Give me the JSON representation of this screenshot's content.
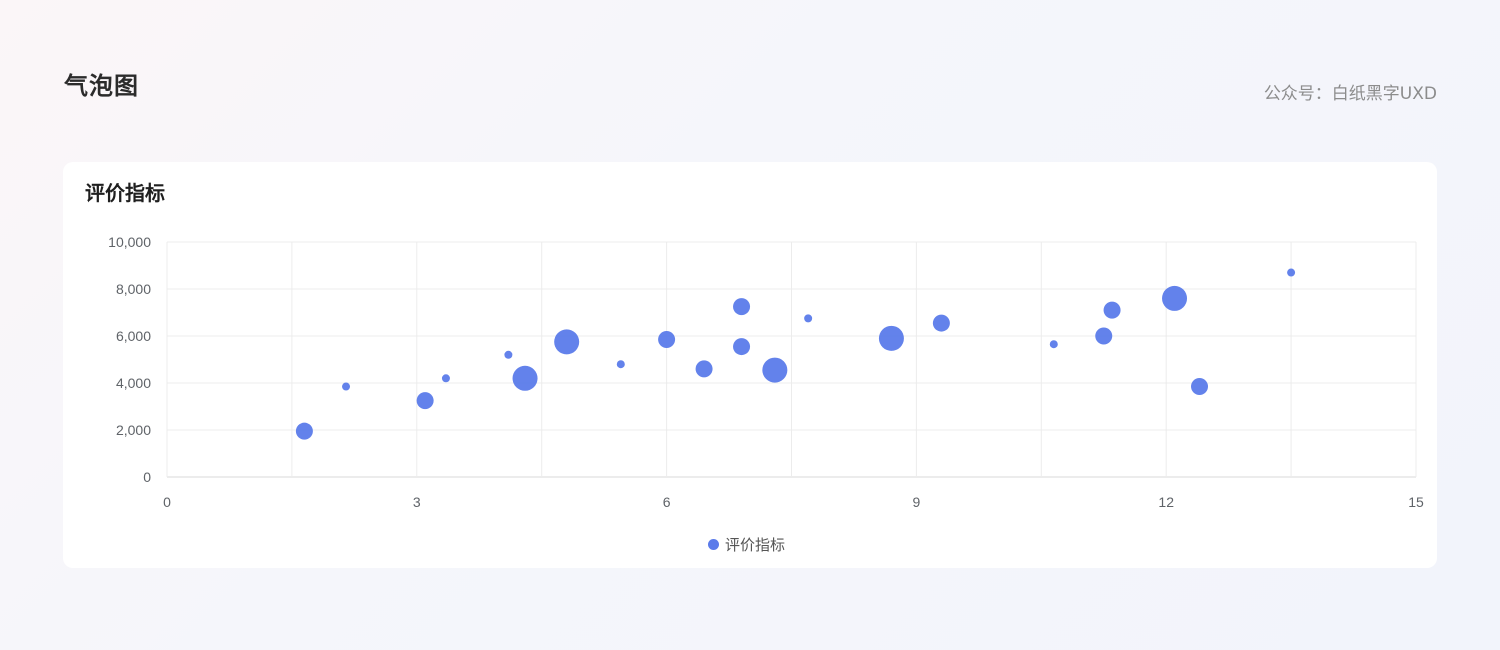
{
  "page": {
    "title": "气泡图",
    "attribution": "公众号：白纸黑字UXD"
  },
  "card": {
    "title": "评价指标"
  },
  "colors": {
    "bubble": "#5b7bea",
    "grid": "#ececec",
    "axis": "#d9d9d9"
  },
  "chart_data": {
    "type": "scatter",
    "title": "评价指标",
    "xlabel": "",
    "ylabel": "",
    "xlim": [
      0,
      15
    ],
    "ylim": [
      0,
      10000
    ],
    "x_ticks": [
      "0",
      "3",
      "6",
      "9",
      "12",
      "15"
    ],
    "y_ticks": [
      "0",
      "2,000",
      "4,000",
      "6,000",
      "8,000",
      "10,000"
    ],
    "grid": true,
    "legend_position": "bottom-center",
    "series": [
      {
        "name": "评价指标",
        "points": [
          {
            "x": 1.65,
            "y": 1950,
            "size": 3
          },
          {
            "x": 2.15,
            "y": 3850,
            "size": 1
          },
          {
            "x": 3.1,
            "y": 3250,
            "size": 3
          },
          {
            "x": 3.35,
            "y": 4200,
            "size": 1
          },
          {
            "x": 4.1,
            "y": 5200,
            "size": 1
          },
          {
            "x": 4.3,
            "y": 4200,
            "size": 6
          },
          {
            "x": 4.8,
            "y": 5750,
            "size": 6
          },
          {
            "x": 5.45,
            "y": 4800,
            "size": 1
          },
          {
            "x": 6.0,
            "y": 5850,
            "size": 3
          },
          {
            "x": 6.45,
            "y": 4600,
            "size": 3
          },
          {
            "x": 6.9,
            "y": 7250,
            "size": 3
          },
          {
            "x": 6.9,
            "y": 5550,
            "size": 3
          },
          {
            "x": 7.3,
            "y": 4550,
            "size": 6
          },
          {
            "x": 7.7,
            "y": 6750,
            "size": 1
          },
          {
            "x": 8.7,
            "y": 5900,
            "size": 6
          },
          {
            "x": 9.3,
            "y": 6550,
            "size": 3
          },
          {
            "x": 10.65,
            "y": 5650,
            "size": 1
          },
          {
            "x": 11.25,
            "y": 6000,
            "size": 3
          },
          {
            "x": 11.35,
            "y": 7100,
            "size": 3
          },
          {
            "x": 12.1,
            "y": 7600,
            "size": 6
          },
          {
            "x": 12.4,
            "y": 3850,
            "size": 3
          },
          {
            "x": 13.5,
            "y": 8700,
            "size": 1
          }
        ]
      }
    ]
  }
}
